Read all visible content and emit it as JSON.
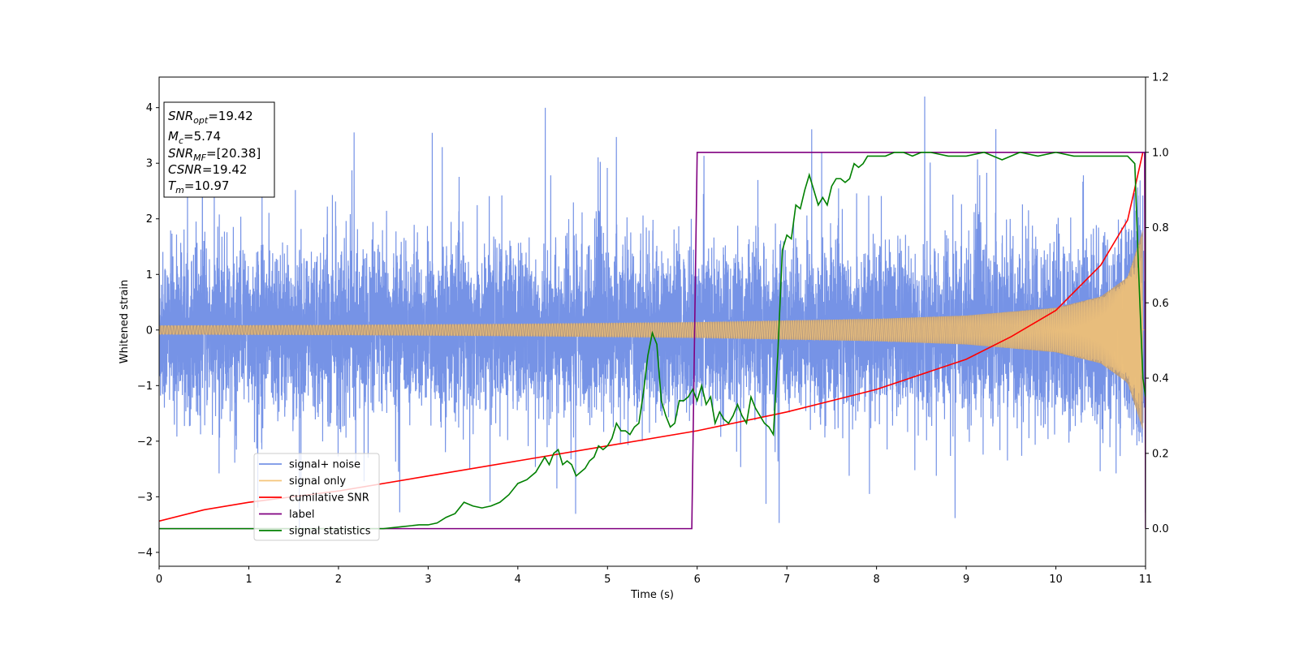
{
  "chart_data": {
    "type": "line",
    "xlabel": "Time (s)",
    "ylabel": "Whitened strain",
    "xlim": [
      0,
      11
    ],
    "ylim_left": [
      -4.25,
      4.55
    ],
    "ylim_right": [
      -0.1,
      1.2
    ],
    "xticks": [
      "0",
      "1",
      "2",
      "3",
      "4",
      "5",
      "6",
      "7",
      "8",
      "9",
      "10",
      "11"
    ],
    "yticks_left": [
      "−4",
      "−3",
      "−2",
      "−1",
      "0",
      "1",
      "2",
      "3",
      "4"
    ],
    "yticks_right": [
      "0.0",
      "0.2",
      "0.4",
      "0.6",
      "0.8",
      "1.0",
      "1.2"
    ],
    "grid": false,
    "legend_position": "lower-left",
    "info_box": {
      "lines": [
        {
          "sym": "SNR",
          "sub": "opt",
          "val": "=19.42"
        },
        {
          "sym": "M",
          "sub": "c",
          "val": "=5.74"
        },
        {
          "sym": "SNR",
          "sub": "MF",
          "val": "=[20.38]"
        },
        {
          "sym": "CSNR",
          "sub": "",
          "val": "=19.42"
        },
        {
          "sym": "T",
          "sub": "m",
          "val": "=10.97"
        }
      ]
    },
    "series": [
      {
        "name": "signal+ noise",
        "axis": "left",
        "color": "#7693e6",
        "description": "whitened strain: noise (std ~1.15, spikes up to ~4.2 and down to ~-3.8) plus chirp",
        "noise_std": 1.15,
        "max_value": 4.2,
        "min_value": -3.85
      },
      {
        "name": "signal only",
        "axis": "left",
        "color": "#f5c57a",
        "description": "chirp with amplitude rising from ~0.08 at t=0 to ~1.8 at t=10.97, ending at merger",
        "amplitude_envelope": {
          "t": [
            0,
            2,
            4,
            6,
            8,
            9,
            10,
            10.5,
            10.8,
            10.97
          ],
          "a": [
            0.08,
            0.09,
            0.11,
            0.14,
            0.2,
            0.26,
            0.4,
            0.6,
            0.95,
            1.8
          ]
        }
      },
      {
        "name": "cumilative SNR",
        "axis": "right",
        "color": "#ff0000",
        "x": [
          0,
          0.5,
          1,
          2,
          3,
          4,
          5,
          6,
          7,
          8,
          9,
          9.5,
          10,
          10.5,
          10.8,
          10.97
        ],
        "y": [
          0.02,
          0.05,
          0.07,
          0.1,
          0.14,
          0.18,
          0.22,
          0.26,
          0.31,
          0.37,
          0.45,
          0.51,
          0.58,
          0.7,
          0.82,
          1.0
        ]
      },
      {
        "name": "label",
        "axis": "right",
        "color": "#800080",
        "x": [
          0,
          5.94,
          6.0,
          10.97,
          10.99,
          11.0
        ],
        "y": [
          0.0,
          0.0,
          1.0,
          1.0,
          1.0,
          0.0
        ]
      },
      {
        "name": "signal statistics",
        "axis": "right",
        "color": "#008000",
        "x": [
          0,
          0.5,
          1,
          1.5,
          2,
          2.5,
          2.7,
          2.9,
          3.0,
          3.1,
          3.2,
          3.3,
          3.4,
          3.5,
          3.6,
          3.7,
          3.8,
          3.9,
          4.0,
          4.1,
          4.2,
          4.3,
          4.35,
          4.4,
          4.45,
          4.5,
          4.55,
          4.6,
          4.65,
          4.7,
          4.75,
          4.8,
          4.85,
          4.9,
          4.95,
          5.0,
          5.05,
          5.1,
          5.15,
          5.2,
          5.25,
          5.3,
          5.35,
          5.4,
          5.45,
          5.5,
          5.55,
          5.6,
          5.65,
          5.7,
          5.75,
          5.8,
          5.85,
          5.9,
          5.95,
          6.0,
          6.05,
          6.1,
          6.15,
          6.2,
          6.25,
          6.3,
          6.35,
          6.4,
          6.45,
          6.5,
          6.55,
          6.6,
          6.65,
          6.7,
          6.75,
          6.8,
          6.85,
          6.9,
          6.95,
          7.0,
          7.05,
          7.1,
          7.15,
          7.2,
          7.25,
          7.3,
          7.35,
          7.4,
          7.45,
          7.5,
          7.55,
          7.6,
          7.65,
          7.7,
          7.75,
          7.8,
          7.85,
          7.9,
          8.0,
          8.1,
          8.2,
          8.3,
          8.4,
          8.5,
          8.6,
          8.8,
          9.0,
          9.2,
          9.4,
          9.6,
          9.8,
          10.0,
          10.2,
          10.4,
          10.6,
          10.8,
          10.88,
          10.92,
          10.97,
          11.0
        ],
        "y": [
          0.0,
          0.0,
          0.0,
          0.0,
          0.0,
          0.0,
          0.005,
          0.01,
          0.01,
          0.015,
          0.03,
          0.04,
          0.07,
          0.06,
          0.055,
          0.06,
          0.07,
          0.09,
          0.12,
          0.13,
          0.15,
          0.19,
          0.17,
          0.2,
          0.21,
          0.17,
          0.18,
          0.17,
          0.14,
          0.15,
          0.16,
          0.18,
          0.19,
          0.22,
          0.21,
          0.22,
          0.24,
          0.28,
          0.26,
          0.26,
          0.25,
          0.27,
          0.28,
          0.36,
          0.46,
          0.52,
          0.49,
          0.34,
          0.3,
          0.27,
          0.28,
          0.34,
          0.34,
          0.35,
          0.37,
          0.34,
          0.38,
          0.33,
          0.35,
          0.28,
          0.31,
          0.29,
          0.28,
          0.3,
          0.33,
          0.3,
          0.28,
          0.35,
          0.32,
          0.3,
          0.28,
          0.27,
          0.25,
          0.47,
          0.74,
          0.78,
          0.77,
          0.86,
          0.85,
          0.9,
          0.94,
          0.9,
          0.86,
          0.88,
          0.86,
          0.91,
          0.93,
          0.93,
          0.92,
          0.93,
          0.97,
          0.96,
          0.97,
          0.99,
          0.99,
          0.99,
          1.0,
          1.0,
          0.99,
          1.0,
          1.0,
          0.99,
          0.99,
          1.0,
          0.98,
          1.0,
          0.99,
          1.0,
          0.99,
          0.99,
          0.99,
          0.99,
          0.97,
          0.7,
          0.4,
          0.35
        ]
      }
    ]
  }
}
